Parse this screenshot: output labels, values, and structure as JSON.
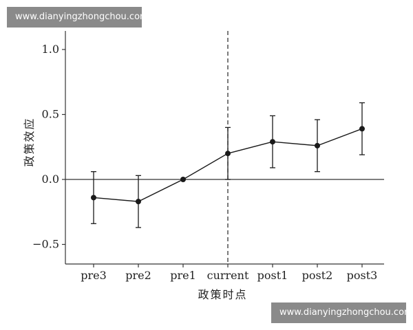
{
  "watermarks": {
    "top": "www.dianyingzhongchou.com",
    "bottom": "www.dianyingzhongchou.com"
  },
  "chart_data": {
    "type": "line",
    "title": "",
    "xlabel": "政策时点",
    "ylabel": "政策效应",
    "categories": [
      "pre3",
      "pre2",
      "pre1",
      "current",
      "post1",
      "post2",
      "post3"
    ],
    "series": [
      {
        "values": [
          -0.14,
          -0.17,
          0.0,
          0.2,
          0.29,
          0.26,
          0.39
        ],
        "lower": [
          -0.34,
          -0.37,
          0.0,
          0.0,
          0.09,
          0.06,
          0.19
        ],
        "upper": [
          0.06,
          0.03,
          0.0,
          0.4,
          0.49,
          0.46,
          0.59
        ]
      }
    ],
    "ylim": [
      -0.65,
      1.1
    ],
    "yticks": [
      1.0,
      0.5,
      0.0,
      -0.5
    ],
    "ytick_labels": [
      "1.0",
      "0.5",
      "0.0",
      "−0.5"
    ],
    "reference_line_y": 0,
    "vertical_dashed_at": "current",
    "grid": false,
    "colors": {
      "line": "#1a1a1a",
      "marker": "#1a1a1a",
      "axis": "#333333"
    }
  }
}
